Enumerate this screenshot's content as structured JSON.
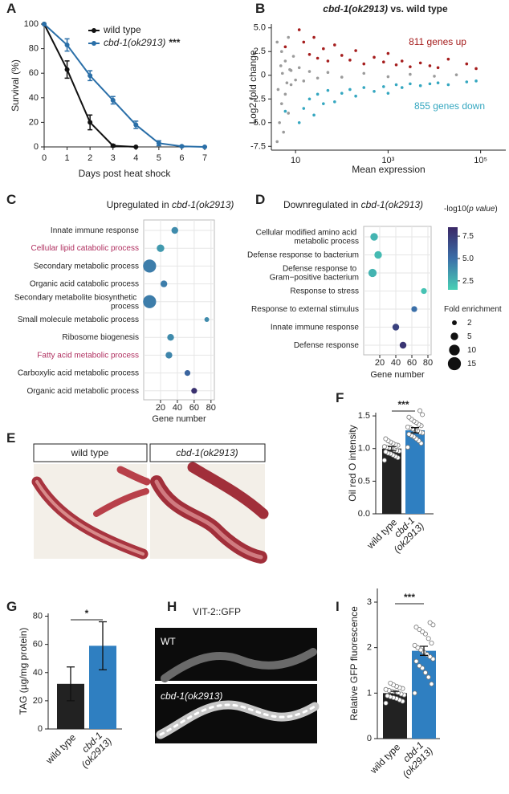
{
  "chart_data": [
    {
      "type": "line",
      "panel": "A",
      "xlabel": "Days post heat shock",
      "ylabel": "Survival (%)",
      "xlim": [
        0,
        7
      ],
      "xticks": [
        0,
        1,
        2,
        3,
        4,
        5,
        6,
        7
      ],
      "ylim": [
        0,
        100
      ],
      "yticks": [
        0,
        20,
        40,
        60,
        80,
        100
      ],
      "legend": "upper right",
      "series": [
        {
          "name": "wild type",
          "color": "#111111",
          "x": [
            0,
            1,
            2,
            3,
            4
          ],
          "values": [
            100,
            63,
            20,
            1,
            0
          ],
          "errors": [
            0,
            7,
            6,
            1,
            0
          ]
        },
        {
          "name": "cbd-1(ok2913)",
          "significance": "***",
          "color": "#2a6fa8",
          "x": [
            0,
            1,
            2,
            3,
            4,
            5,
            6,
            7
          ],
          "values": [
            100,
            83,
            58,
            38,
            18,
            3,
            0.5,
            0
          ],
          "errors": [
            0,
            5,
            4,
            3,
            3,
            2,
            0.5,
            0
          ]
        }
      ]
    },
    {
      "type": "scatter",
      "panel": "B",
      "title": "cbd-1(ok2913) vs. wild type",
      "xlabel": "Mean expression",
      "ylabel": "Log2 fold change",
      "xscale": "log",
      "xlim": [
        3,
        350000
      ],
      "xticks": [
        10,
        {
          "value": 1000,
          "label": "10³"
        },
        {
          "value": 100000,
          "label": "10⁵"
        }
      ],
      "ylim": [
        -7.9,
        5.4
      ],
      "yticks": [
        {
          "value": 5,
          "label": "5.0"
        },
        2.5,
        0,
        -2.5,
        {
          "value": -5,
          "label": "-5.0"
        },
        -7.5
      ],
      "annotations": [
        {
          "text": "811 genes up",
          "color": "#a51d1d"
        },
        {
          "text": "855 genes down",
          "color": "#35a7c0"
        }
      ],
      "series": [
        {
          "color": "#9b9b9b",
          "x": [
            4,
            4,
            4.5,
            5,
            5,
            5.5,
            6,
            6,
            7,
            7,
            8,
            8,
            9,
            10,
            12,
            15,
            20,
            30,
            50,
            100,
            300,
            1000,
            3000,
            10000,
            30000,
            4.2,
            4.8,
            5.2,
            6.5,
            7.5
          ],
          "values": [
            -7.0,
            3.5,
            -5,
            2.5,
            -3,
            -6,
            1.5,
            -2,
            4,
            -4,
            0.5,
            -1,
            2,
            -0.5,
            0.8,
            -0.6,
            0.4,
            -0.3,
            0.3,
            -0.2,
            0.2,
            -0.15,
            0.1,
            -0.1,
            0.05,
            -1.5,
            1,
            0.2,
            -0.8,
            0.6
          ]
        },
        {
          "color": "#a51d1d",
          "x": [
            12,
            15,
            20,
            25,
            30,
            40,
            50,
            70,
            100,
            150,
            200,
            300,
            500,
            800,
            1000,
            1500,
            2000,
            3000,
            5000,
            8000,
            12000,
            20000,
            50000,
            80000,
            6
          ],
          "values": [
            4.8,
            3.5,
            2.2,
            4.0,
            1.8,
            2.8,
            1.5,
            3.2,
            2.1,
            1.6,
            2.6,
            1.2,
            1.9,
            1.4,
            2.3,
            1.1,
            1.5,
            0.9,
            1.3,
            1.0,
            0.8,
            1.7,
            1.2,
            0.7,
            3.0
          ]
        },
        {
          "color": "#35a7c0",
          "x": [
            12,
            15,
            20,
            25,
            30,
            40,
            50,
            70,
            100,
            150,
            200,
            300,
            500,
            800,
            1000,
            1500,
            2000,
            3000,
            5000,
            8000,
            12000,
            20000,
            50000,
            80000,
            6
          ],
          "values": [
            -5.0,
            -3.5,
            -2.5,
            -4.2,
            -2.0,
            -3.0,
            -1.6,
            -2.8,
            -1.9,
            -1.5,
            -2.2,
            -1.3,
            -1.7,
            -1.2,
            -1.9,
            -1.0,
            -1.3,
            -0.9,
            -1.1,
            -0.9,
            -0.8,
            -1.0,
            -0.7,
            -0.6,
            -3.8
          ]
        }
      ]
    },
    {
      "type": "dot",
      "panel": "C",
      "title": "Upregulated in cbd-1(ok2913)",
      "xlabel": "Gene number",
      "xlim": [
        0,
        84
      ],
      "xticks": [
        20,
        40,
        60,
        80
      ],
      "categories": [
        "Innate immune response",
        "Cellular lipid catabolic process",
        "Secondary metabolic process",
        "Organic acid catabolic process",
        "Secondary metabolite biosynthetic process",
        "Small molecule metabolic process",
        "Ribosome biogenesis",
        "Fatty acid metabolic process",
        "Carboxylic acid metabolic process",
        "Organic acid metabolic process"
      ],
      "category_colors": [
        "#222222",
        "#b03060",
        "#222222",
        "#222222",
        "#222222",
        "#222222",
        "#222222",
        "#b03060",
        "#222222",
        "#222222"
      ],
      "values": [
        37,
        20,
        7,
        24,
        7,
        75,
        32,
        30,
        52,
        60
      ],
      "sizes": [
        4,
        5,
        15,
        4,
        15,
        2,
        4,
        4,
        3,
        3
      ],
      "color_values": [
        4,
        3.5,
        4.5,
        4.5,
        4.5,
        4,
        4,
        4.2,
        5.5,
        8
      ]
    },
    {
      "type": "dot",
      "panel": "D",
      "title": "Downregulated in cbd-1(ok2913)",
      "xlabel": "Gene number",
      "xlim": [
        0,
        84
      ],
      "xticks": [
        20,
        40,
        60,
        80
      ],
      "categories": [
        "Cellular modified amino acid metabolic process",
        "Defense response to bacterium",
        "Defense response to Gram−positive bacterium",
        "Response to stress",
        "Response to external stimulus",
        "Innate immune response",
        "Defense response"
      ],
      "values": [
        13,
        18,
        11,
        75,
        63,
        40,
        49
      ],
      "sizes": [
        5,
        5,
        6,
        3,
        3,
        4,
        4
      ],
      "color_values": [
        2.5,
        2.3,
        2.5,
        2.0,
        5,
        7.2,
        7.8
      ],
      "colorbar": {
        "label": "-log10(p value)",
        "lim": [
          1.5,
          8.5
        ],
        "ticks": [
          2.5,
          {
            "value": 5,
            "label": "5.0"
          },
          7.5
        ],
        "colors": [
          "#48d0b5",
          "#3b6fa8",
          "#3a2766"
        ]
      },
      "size_legend": {
        "label": "Fold enrichment",
        "values": [
          2,
          5,
          10,
          15
        ]
      }
    },
    {
      "type": "bar",
      "panel": "F",
      "ylabel": "Oil red O intensity",
      "categories": [
        "wild type",
        "cbd-1 (ok2913)"
      ],
      "values": [
        1.0,
        1.28
      ],
      "errors": [
        0.03,
        0.04
      ],
      "colors": [
        "#222222",
        "#2f7fc1"
      ],
      "points": [
        [
          0.82,
          0.86,
          0.88,
          0.9,
          0.92,
          0.93,
          0.95,
          0.96,
          0.97,
          0.98,
          1.0,
          1.01,
          1.02,
          1.03,
          1.05,
          1.06,
          1.08,
          1.1,
          1.12,
          1.15
        ],
        [
          1.02,
          1.08,
          1.12,
          1.15,
          1.18,
          1.2,
          1.22,
          1.24,
          1.25,
          1.27,
          1.28,
          1.3,
          1.32,
          1.33,
          1.35,
          1.37,
          1.4,
          1.42,
          1.45,
          1.48,
          1.52,
          1.58
        ]
      ],
      "ylim": [
        0,
        1.55
      ],
      "yticks": [
        {
          "value": 0,
          "label": "0.0"
        },
        0.5,
        {
          "value": 1,
          "label": "1.0"
        },
        1.5
      ],
      "significance": "***"
    },
    {
      "type": "bar",
      "panel": "G",
      "ylabel": "TAG (µg/mg protein)",
      "categories": [
        "wild type",
        "cbd-1 (ok2913)"
      ],
      "values": [
        32,
        59
      ],
      "errors": [
        12,
        17
      ],
      "colors": [
        "#222222",
        "#2f7fc1"
      ],
      "ylim": [
        0,
        82
      ],
      "yticks": [
        0,
        20,
        40,
        60,
        80
      ],
      "significance": "*"
    },
    {
      "type": "bar",
      "panel": "I",
      "ylabel": "Relative GFP fluorescence",
      "categories": [
        "wild type",
        "cbd-1 (ok2913)"
      ],
      "values": [
        1.0,
        1.93
      ],
      "errors": [
        0.04,
        0.1
      ],
      "colors": [
        "#222222",
        "#2f7fc1"
      ],
      "points": [
        [
          0.78,
          0.82,
          0.85,
          0.88,
          0.9,
          0.92,
          0.94,
          0.96,
          0.98,
          1.0,
          1.02,
          1.04,
          1.06,
          1.08,
          1.1,
          1.12,
          1.15,
          1.18,
          1.22
        ],
        [
          1.0,
          1.2,
          1.35,
          1.45,
          1.55,
          1.6,
          1.7,
          1.75,
          1.8,
          1.85,
          1.9,
          1.95,
          2.0,
          2.05,
          2.1,
          2.2,
          2.3,
          2.35,
          2.4,
          2.45,
          2.5,
          2.55
        ]
      ],
      "ylim": [
        0,
        3.3
      ],
      "yticks": [
        0,
        1,
        2,
        3
      ],
      "significance": "***"
    }
  ],
  "image_panels": [
    {
      "panel": "E",
      "captions": [
        "wild type",
        "cbd-1(ok2913)"
      ]
    },
    {
      "panel": "H",
      "title": "VIT-2::GFP",
      "captions": [
        "WT",
        "cbd-1(ok2913)"
      ]
    }
  ]
}
